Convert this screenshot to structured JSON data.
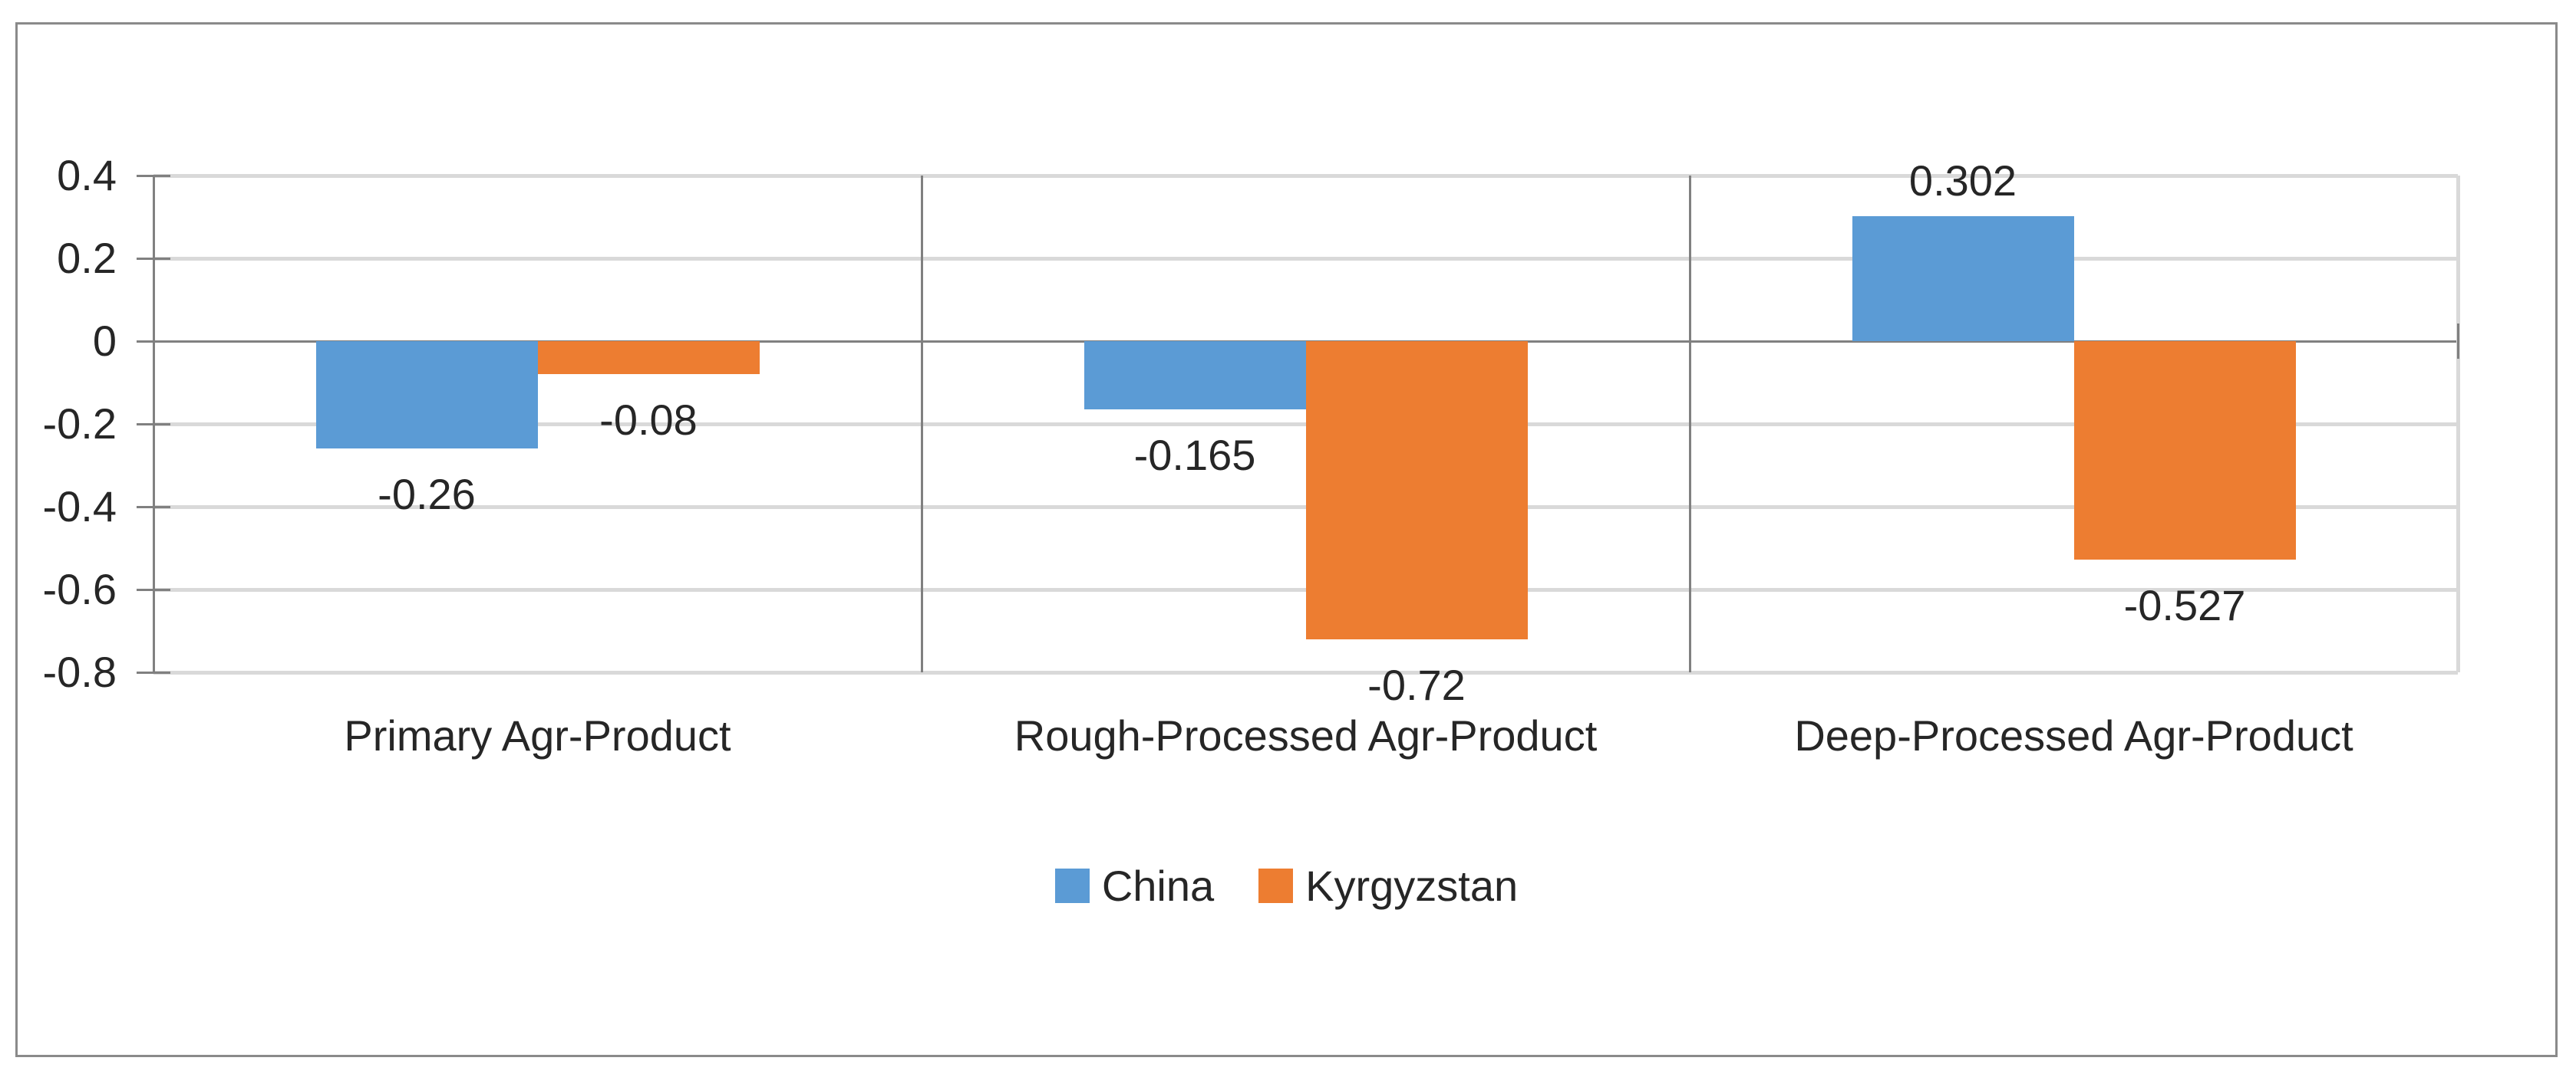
{
  "chart_data": {
    "type": "bar",
    "categories": [
      "Primary Agr-Product",
      "Rough-Processed Agr-Product",
      "Deep-Processed Agr-Product"
    ],
    "series": [
      {
        "name": "China",
        "color": "#5B9BD5",
        "values": [
          -0.26,
          -0.165,
          0.302
        ],
        "data_labels": [
          "-0.26",
          "-0.165",
          "0.302"
        ]
      },
      {
        "name": "Kyrgyzstan",
        "color": "#ED7D31",
        "values": [
          -0.08,
          -0.72,
          -0.527
        ],
        "data_labels": [
          "-0.08",
          "-0.72",
          "-0.527"
        ]
      }
    ],
    "title": "",
    "xlabel": "",
    "ylabel": "",
    "ylim": [
      -0.8,
      0.4
    ],
    "ytick_step": 0.2,
    "ytick_labels": [
      "0.4",
      "0.2",
      "0",
      "-0.2",
      "-0.4",
      "-0.6",
      "-0.8"
    ],
    "grid": "horizontal-light-with-vertical-category-separators",
    "legend_position": "bottom-center"
  },
  "colors": {
    "grid_light": "#d9d9d9",
    "axis_dark": "#808080",
    "chart_border": "#8a8a8a",
    "text": "#262626",
    "background": "#ffffff"
  }
}
